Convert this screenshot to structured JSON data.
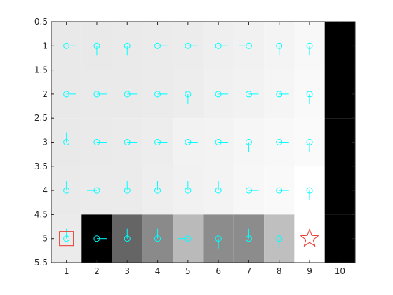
{
  "chart_data": {
    "type": "heatmap",
    "title": "",
    "xlabel": "",
    "ylabel": "",
    "xlim": [
      0.5,
      10.5
    ],
    "ylim": [
      5.5,
      0.5
    ],
    "y_reversed": true,
    "grid": false,
    "x_ticks": [
      {
        "value": 1,
        "label": "1"
      },
      {
        "value": 2,
        "label": "2"
      },
      {
        "value": 3,
        "label": "3"
      },
      {
        "value": 4,
        "label": "4"
      },
      {
        "value": 5,
        "label": "5"
      },
      {
        "value": 6,
        "label": "6"
      },
      {
        "value": 7,
        "label": "7"
      },
      {
        "value": 8,
        "label": "8"
      },
      {
        "value": 9,
        "label": "9"
      },
      {
        "value": 10,
        "label": "10"
      }
    ],
    "y_ticks": [
      {
        "value": 0.5,
        "label": "0.5"
      },
      {
        "value": 1,
        "label": "1"
      },
      {
        "value": 1.5,
        "label": "1.5"
      },
      {
        "value": 2,
        "label": "2"
      },
      {
        "value": 2.5,
        "label": "2.5"
      },
      {
        "value": 3,
        "label": "3"
      },
      {
        "value": 3.5,
        "label": "3.5"
      },
      {
        "value": 4,
        "label": "4"
      },
      {
        "value": 4.5,
        "label": "4.5"
      },
      {
        "value": 5,
        "label": "5"
      },
      {
        "value": 5.5,
        "label": "5.5"
      }
    ],
    "cells": [
      [
        "#e9e9e9",
        "#e9e9e9",
        "#eaeaea",
        "#ebebeb",
        "#ececec",
        "#efefef",
        "#f1f1f1",
        "#f4f4f4",
        "#f8f8f8",
        "#000000"
      ],
      [
        "#e9e9e9",
        "#eaeaea",
        "#eaeaea",
        "#ebebeb",
        "#ededed",
        "#f0f0f0",
        "#f2f2f2",
        "#f5f5f5",
        "#f9f9f9",
        "#000000"
      ],
      [
        "#e9e9e9",
        "#eaeaea",
        "#ebebeb",
        "#ededed",
        "#f2f2f2",
        "#f3f3f3",
        "#f6f6f6",
        "#f8f8f8",
        "#fafafa",
        "#000000"
      ],
      [
        "#eaeaea",
        "#ebebeb",
        "#ebebeb",
        "#eeeeee",
        "#f1f1f1",
        "#f3f3f3",
        "#f7f7f7",
        "#f9f9f9",
        "#ffffff",
        "#000000"
      ],
      [
        "#ebebeb",
        "#000000",
        "#656565",
        "#8a8a8a",
        "#bababa",
        "#8c8c8c",
        "#8c8c8c",
        "#bfbfbf",
        "#ffffff",
        "#000000"
      ]
    ],
    "arrows": [
      [
        "right",
        "down",
        "down",
        "right",
        "right",
        "right",
        "left",
        "down",
        "down",
        null
      ],
      [
        "right",
        "right",
        "right",
        "right",
        "down",
        "right",
        "right",
        "right",
        "down",
        null
      ],
      [
        "up",
        "right",
        "right",
        "right",
        "right",
        "right",
        "down",
        "right",
        "down",
        null
      ],
      [
        "up",
        "left",
        "up",
        "up",
        "up",
        "up",
        "right",
        "right",
        "down",
        null
      ],
      [
        "up",
        "right",
        "up",
        "up",
        "left",
        "down",
        "up",
        "down",
        null,
        null
      ]
    ],
    "arrow_color": "#00ffff",
    "start": {
      "x": 1,
      "y": 5,
      "marker": "square",
      "color": "#e8352c"
    },
    "goal": {
      "x": 9,
      "y": 5,
      "marker": "star",
      "color": "#e8352c"
    }
  }
}
